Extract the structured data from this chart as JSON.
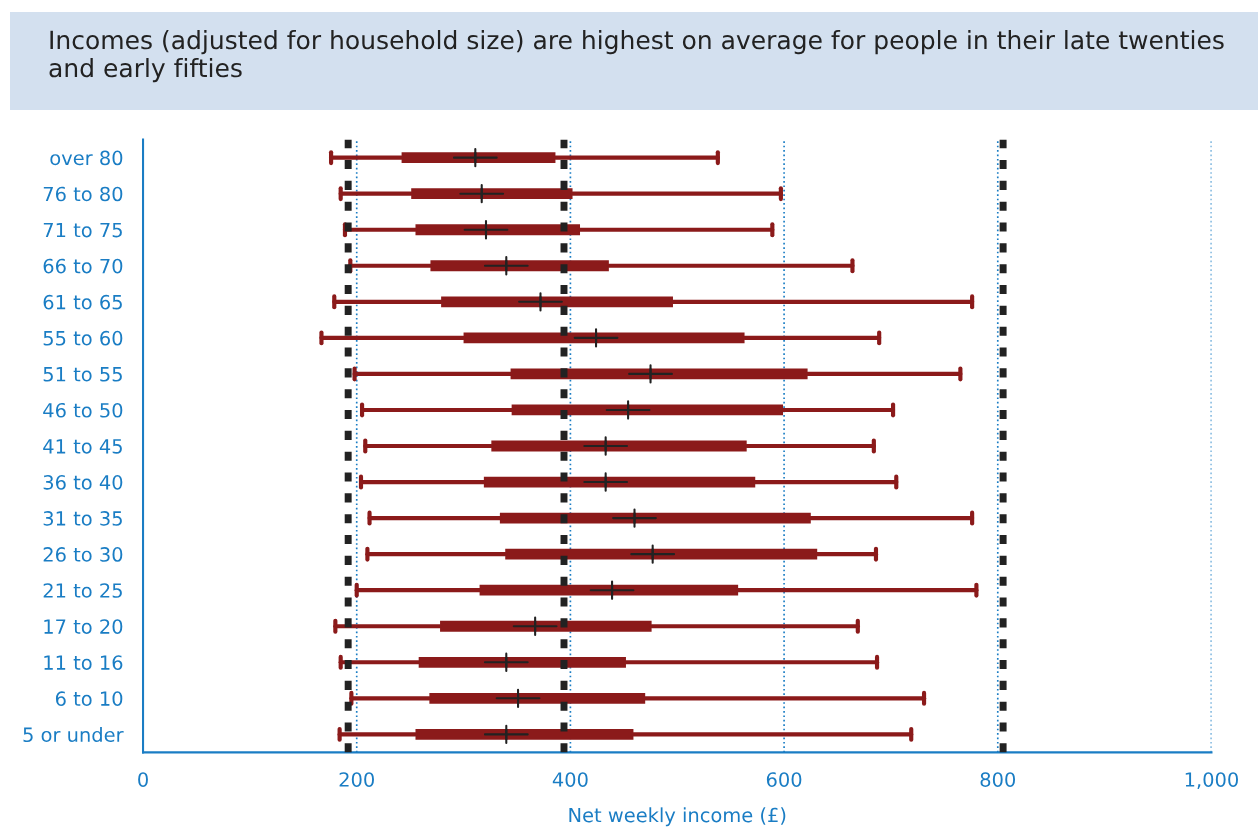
{
  "chart_data": {
    "type": "box",
    "orientation": "horizontal",
    "title": "Incomes (adjusted for household size) are highest on average for people in their late twenties and early fifties",
    "xlabel": "Net weekly income (£)",
    "categories": [
      "over 80",
      "76 to 80",
      "71 to 75",
      "66 to 70",
      "61 to 65",
      "55 to 60",
      "51 to 55",
      "46 to 50",
      "41 to 45",
      "36 to 40",
      "31 to 35",
      "26 to 30",
      "21 to 25",
      "17 to 20",
      "11 to 16",
      "6 to 10",
      "5 or under"
    ],
    "series": [
      {
        "color": "#8b1a1a",
        "boxes": [
          {
            "low": 176,
            "q1": 242,
            "median": 311,
            "q3": 386,
            "high": 538
          },
          {
            "low": 185,
            "q1": 251,
            "median": 317,
            "q3": 402,
            "high": 597
          },
          {
            "low": 189,
            "q1": 255,
            "median": 321,
            "q3": 409,
            "high": 589
          },
          {
            "low": 194,
            "q1": 269,
            "median": 340,
            "q3": 436,
            "high": 664
          },
          {
            "low": 179,
            "q1": 279,
            "median": 372,
            "q3": 496,
            "high": 776
          },
          {
            "low": 167,
            "q1": 300,
            "median": 424,
            "q3": 563,
            "high": 689
          },
          {
            "low": 198,
            "q1": 344,
            "median": 475,
            "q3": 622,
            "high": 765
          },
          {
            "low": 205,
            "q1": 345,
            "median": 454,
            "q3": 599,
            "high": 702
          },
          {
            "low": 208,
            "q1": 326,
            "median": 433,
            "q3": 565,
            "high": 684
          },
          {
            "low": 204,
            "q1": 319,
            "median": 433,
            "q3": 573,
            "high": 705
          },
          {
            "low": 212,
            "q1": 334,
            "median": 460,
            "q3": 625,
            "high": 776
          },
          {
            "low": 210,
            "q1": 339,
            "median": 477,
            "q3": 631,
            "high": 686
          },
          {
            "low": 200,
            "q1": 315,
            "median": 439,
            "q3": 557,
            "high": 780
          },
          {
            "low": 180,
            "q1": 278,
            "median": 367,
            "q3": 476,
            "high": 669
          },
          {
            "low": 185,
            "q1": 258,
            "median": 340,
            "q3": 452,
            "high": 687
          },
          {
            "low": 195,
            "q1": 268,
            "median": 351,
            "q3": 470,
            "high": 731
          },
          {
            "low": 184,
            "q1": 255,
            "median": 340,
            "q3": 459,
            "high": 719
          }
        ]
      }
    ],
    "xlim": [
      0,
      1000
    ],
    "xticks": [
      0,
      200,
      400,
      600,
      800,
      {
        "value": 1000,
        "label": "1,000"
      }
    ],
    "grid": "x",
    "ref_lines": [
      {
        "axis": "x",
        "value": 192,
        "color": "#222222",
        "line_style": "dashed"
      },
      {
        "axis": "x",
        "value": 394,
        "color": "#222222",
        "line_style": "dashed"
      },
      {
        "axis": "x",
        "value": 805,
        "color": "#222222",
        "line_style": "dashed"
      }
    ]
  }
}
